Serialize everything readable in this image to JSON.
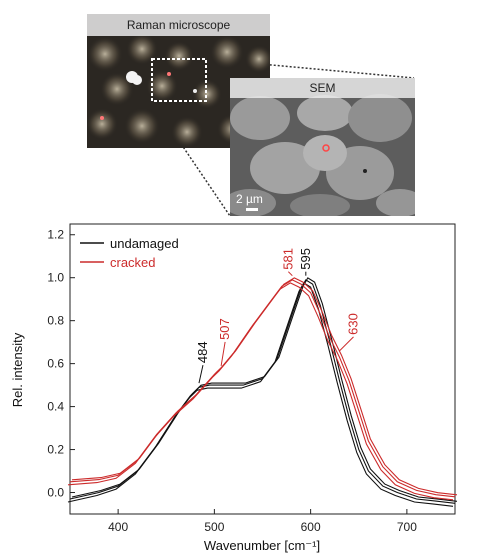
{
  "figure": {
    "raman_label": "Raman microscope",
    "sem_label": "SEM",
    "scalebar_label": "2 µm"
  },
  "colors": {
    "undamaged": "#111111",
    "cracked": "#cc2b2b"
  },
  "chart_data": {
    "type": "line",
    "xlabel": "Wavenumber [cm⁻¹]",
    "ylabel": "Rel. intensity",
    "xlim": [
      350,
      750
    ],
    "ylim": [
      -0.1,
      1.25
    ],
    "xticks": [
      400,
      500,
      600,
      700
    ],
    "yticks": [
      0.0,
      0.2,
      0.4,
      0.6,
      0.8,
      1.0,
      1.2
    ],
    "ytick_labels": [
      "0.0",
      "0.2",
      "0.4",
      "0.6",
      "0.8",
      "1.0",
      "1.2"
    ],
    "legend": {
      "placement": "top-left",
      "entries": [
        "undamaged",
        "cracked"
      ]
    },
    "series": [
      {
        "name": "undamaged",
        "x": [
          350,
          380,
          400,
          420,
          440,
          460,
          475,
          484,
          495,
          510,
          530,
          550,
          565,
          580,
          590,
          595,
          602,
          610,
          620,
          630,
          640,
          650,
          660,
          675,
          690,
          710,
          730,
          750
        ],
        "y": [
          -0.03,
          0.0,
          0.03,
          0.1,
          0.22,
          0.36,
          0.45,
          0.49,
          0.5,
          0.5,
          0.5,
          0.53,
          0.62,
          0.82,
          0.95,
          0.99,
          0.97,
          0.87,
          0.7,
          0.52,
          0.35,
          0.2,
          0.1,
          0.03,
          0.0,
          -0.03,
          -0.04,
          -0.05
        ]
      },
      {
        "name": "cracked",
        "x": [
          350,
          380,
          400,
          420,
          440,
          460,
          480,
          490,
          500,
          507,
          520,
          540,
          560,
          570,
          581,
          590,
          600,
          610,
          620,
          630,
          640,
          650,
          660,
          675,
          690,
          710,
          730,
          750
        ],
        "y": [
          0.05,
          0.06,
          0.08,
          0.15,
          0.27,
          0.37,
          0.45,
          0.5,
          0.55,
          0.58,
          0.65,
          0.78,
          0.9,
          0.96,
          0.99,
          0.97,
          0.93,
          0.83,
          0.72,
          0.63,
          0.52,
          0.38,
          0.24,
          0.12,
          0.05,
          0.01,
          -0.01,
          -0.02
        ]
      }
    ],
    "annotations": [
      {
        "text": "484",
        "x": 484,
        "y": 0.5,
        "color": "undamaged"
      },
      {
        "text": "507",
        "x": 507,
        "y": 0.58,
        "color": "cracked"
      },
      {
        "text": "581",
        "x": 581,
        "y": 1.0,
        "color": "cracked"
      },
      {
        "text": "595",
        "x": 595,
        "y": 1.0,
        "color": "undamaged"
      },
      {
        "text": "630",
        "x": 630,
        "y": 0.65,
        "color": "cracked"
      }
    ]
  }
}
